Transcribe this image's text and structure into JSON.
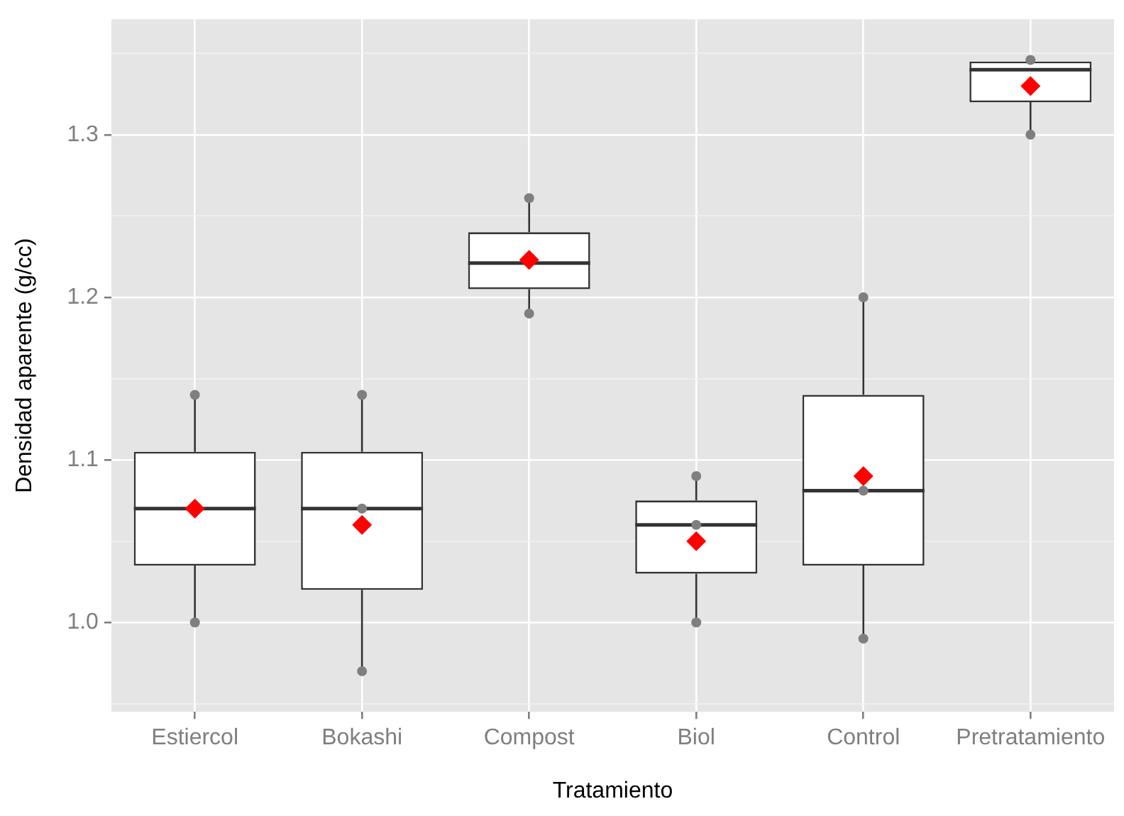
{
  "chart_data": {
    "type": "box",
    "xlabel": "Tratamiento",
    "ylabel": "Densidad aparente (g/cc)",
    "categories": [
      "Estiercol",
      "Bokashi",
      "Compost",
      "Biol",
      "Control",
      "Pretratamiento"
    ],
    "ylim": [
      0.945,
      1.371
    ],
    "yticks": [
      {
        "value": 0.95,
        "label": null
      },
      {
        "value": 1,
        "label": "1.0"
      },
      {
        "value": 1.05,
        "label": null
      },
      1.1,
      {
        "value": 1.15,
        "label": null
      },
      1.2,
      {
        "value": 1.25,
        "label": null
      },
      1.3,
      {
        "value": 1.35,
        "label": null
      }
    ],
    "grid": true,
    "legend": false,
    "series": [
      {
        "color": "#333333",
        "boxes": [
          {
            "low": 1.0,
            "q1": 1.035,
            "median": 1.07,
            "q3": 1.105,
            "high": 1.14
          },
          {
            "low": 0.97,
            "q1": 1.02,
            "median": 1.07,
            "q3": 1.105,
            "high": 1.14
          },
          {
            "low": 1.19,
            "q1": 1.205,
            "median": 1.221,
            "q3": 1.24,
            "high": 1.261
          },
          {
            "low": 1.0,
            "q1": 1.03,
            "median": 1.06,
            "q3": 1.075,
            "high": 1.09
          },
          {
            "low": 0.99,
            "q1": 1.035,
            "median": 1.081,
            "q3": 1.14,
            "high": 1.2
          },
          {
            "low": 1.3,
            "q1": 1.32,
            "median": 1.34,
            "q3": 1.345,
            "high": 1.346
          }
        ]
      },
      {
        "type": "scatter",
        "color": "#7f7f7f",
        "marker": "circle",
        "x": [
          "Estiercol",
          "Estiercol",
          "Bokashi",
          "Bokashi",
          "Bokashi",
          "Compost",
          "Compost",
          "Biol",
          "Biol",
          "Biol",
          "Control",
          "Control",
          "Control",
          "Pretratamiento",
          "Pretratamiento"
        ],
        "values": [
          1.14,
          1.0,
          1.14,
          1.07,
          0.97,
          1.261,
          1.19,
          1.09,
          1.06,
          1.0,
          1.2,
          1.081,
          0.99,
          1.346,
          1.3
        ]
      },
      {
        "type": "scatter",
        "color": "#ff0000",
        "marker": "diamond",
        "x": [
          "Estiercol",
          "Bokashi",
          "Compost",
          "Biol",
          "Control",
          "Pretratamiento"
        ],
        "values": [
          1.07,
          1.06,
          1.223,
          1.05,
          1.09,
          1.33
        ]
      }
    ]
  }
}
